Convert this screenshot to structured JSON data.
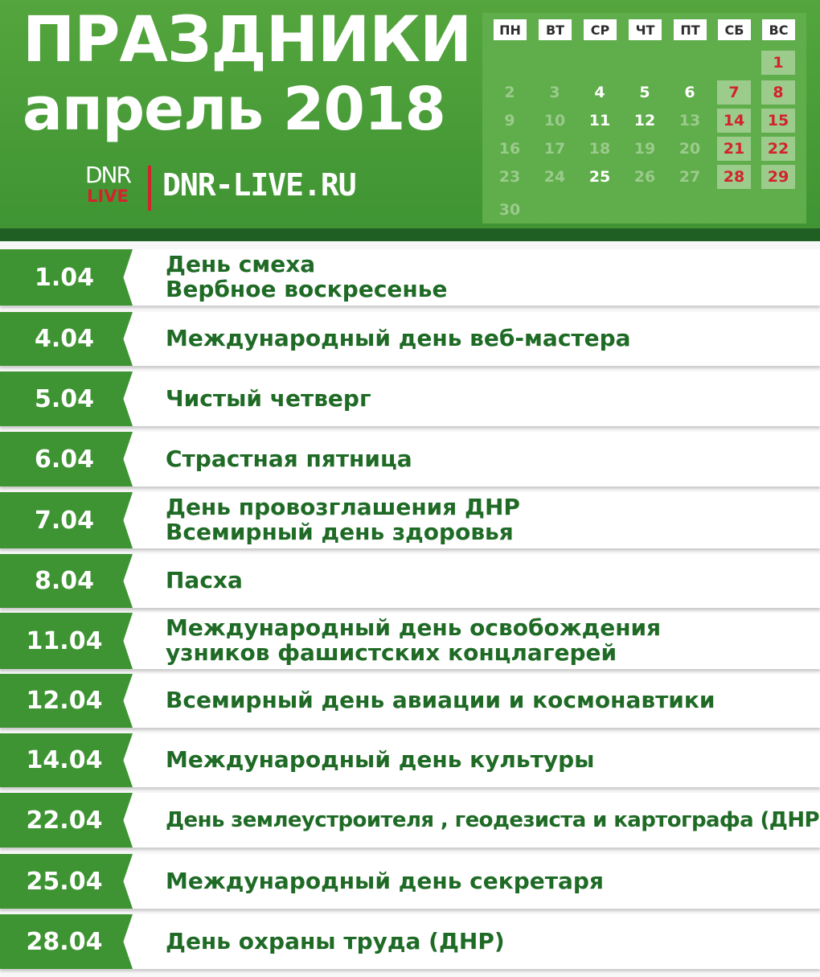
{
  "header": {
    "title": "ПРАЗДНИКИ",
    "subtitle": "апрель 2018",
    "logo_top": "DNR",
    "logo_bottom": "LIVE",
    "site": "DNR-LIVE.RU"
  },
  "calendar": {
    "weekdays": [
      "ПН",
      "ВТ",
      "СР",
      "ЧТ",
      "ПТ",
      "СБ",
      "ВС"
    ],
    "days": [
      {
        "label": "1",
        "col": 6,
        "week": 0,
        "style": "weekend"
      },
      {
        "label": "2",
        "col": 0,
        "week": 1,
        "style": "muted"
      },
      {
        "label": "3",
        "col": 1,
        "week": 1,
        "style": "muted"
      },
      {
        "label": "4",
        "col": 2,
        "week": 1,
        "style": "bright"
      },
      {
        "label": "5",
        "col": 3,
        "week": 1,
        "style": "bright"
      },
      {
        "label": "6",
        "col": 4,
        "week": 1,
        "style": "bright"
      },
      {
        "label": "7",
        "col": 5,
        "week": 1,
        "style": "weekend"
      },
      {
        "label": "8",
        "col": 6,
        "week": 1,
        "style": "weekend"
      },
      {
        "label": "9",
        "col": 0,
        "week": 2,
        "style": "muted"
      },
      {
        "label": "10",
        "col": 1,
        "week": 2,
        "style": "muted"
      },
      {
        "label": "11",
        "col": 2,
        "week": 2,
        "style": "bright"
      },
      {
        "label": "12",
        "col": 3,
        "week": 2,
        "style": "bright"
      },
      {
        "label": "13",
        "col": 4,
        "week": 2,
        "style": "muted"
      },
      {
        "label": "14",
        "col": 5,
        "week": 2,
        "style": "weekend"
      },
      {
        "label": "15",
        "col": 6,
        "week": 2,
        "style": "weekend"
      },
      {
        "label": "16",
        "col": 0,
        "week": 3,
        "style": "muted"
      },
      {
        "label": "17",
        "col": 1,
        "week": 3,
        "style": "muted"
      },
      {
        "label": "18",
        "col": 2,
        "week": 3,
        "style": "muted"
      },
      {
        "label": "19",
        "col": 3,
        "week": 3,
        "style": "muted"
      },
      {
        "label": "20",
        "col": 4,
        "week": 3,
        "style": "muted"
      },
      {
        "label": "21",
        "col": 5,
        "week": 3,
        "style": "weekend"
      },
      {
        "label": "22",
        "col": 6,
        "week": 3,
        "style": "weekend"
      },
      {
        "label": "23",
        "col": 0,
        "week": 4,
        "style": "muted"
      },
      {
        "label": "24",
        "col": 1,
        "week": 4,
        "style": "muted"
      },
      {
        "label": "25",
        "col": 2,
        "week": 4,
        "style": "bright"
      },
      {
        "label": "26",
        "col": 3,
        "week": 4,
        "style": "muted"
      },
      {
        "label": "27",
        "col": 4,
        "week": 4,
        "style": "muted"
      },
      {
        "label": "28",
        "col": 5,
        "week": 4,
        "style": "weekend"
      },
      {
        "label": "29",
        "col": 6,
        "week": 4,
        "style": "weekend"
      },
      {
        "label": "30",
        "col": 0,
        "week": 5,
        "style": "muted"
      }
    ]
  },
  "holidays": [
    {
      "date": "1.04",
      "lines": [
        "День смеха",
        "Вербное воскресенье"
      ]
    },
    {
      "date": "4.04",
      "lines": [
        "Международный день веб-мастера"
      ]
    },
    {
      "date": "5.04",
      "lines": [
        "Чистый четверг"
      ]
    },
    {
      "date": "6.04",
      "lines": [
        "Страстная пятница"
      ]
    },
    {
      "date": "7.04",
      "lines": [
        "День провозглашения ДНР",
        "Всемирный день здоровья"
      ]
    },
    {
      "date": "8.04",
      "lines": [
        "Пасха"
      ]
    },
    {
      "date": "11.04",
      "lines": [
        "Международный день освобождения",
        "узников фашистских концлагерей"
      ]
    },
    {
      "date": "12.04",
      "lines": [
        "Всемирный день авиации и космонавтики"
      ]
    },
    {
      "date": "14.04",
      "lines": [
        "Международный день культуры"
      ]
    },
    {
      "date": "22.04",
      "lines": [
        "День землеустроителя , геодезиста и картографа (ДНР)"
      ]
    },
    {
      "date": "25.04",
      "lines": [
        "Международный день секретаря"
      ]
    },
    {
      "date": "28.04",
      "lines": [
        "День охраны труда (ДНР)"
      ]
    }
  ],
  "colors": {
    "header_green": "#4d9f3a",
    "date_green": "#3e9432",
    "text_green": "#1f6b26",
    "weekend_red": "#d3232c"
  }
}
